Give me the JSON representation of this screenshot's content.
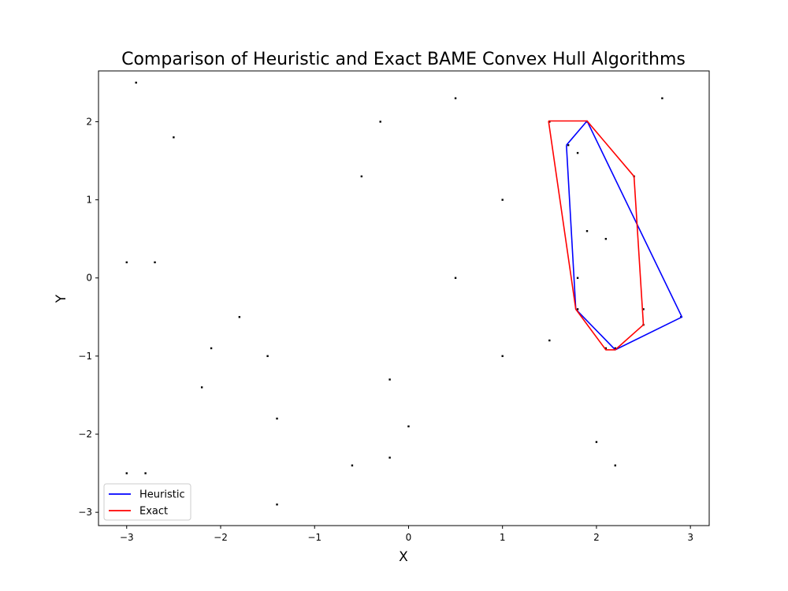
{
  "chart_data": {
    "type": "scatter",
    "title": "Comparison of Heuristic and Exact BAME Convex Hull Algorithms",
    "xlabel": "X",
    "ylabel": "Y",
    "xlim": [
      -3.3,
      3.2
    ],
    "ylim": [
      -3.17,
      2.65
    ],
    "xticks": [
      -3,
      -2,
      -1,
      0,
      1,
      2,
      3
    ],
    "yticks": [
      -3,
      -2,
      -1,
      0,
      1,
      2
    ],
    "grid": false,
    "legend_position": "lower-left",
    "points": [
      {
        "x": -2.9,
        "y": 2.5
      },
      {
        "x": -2.5,
        "y": 1.8
      },
      {
        "x": -3.0,
        "y": 0.2
      },
      {
        "x": -2.7,
        "y": 0.2
      },
      {
        "x": -1.8,
        "y": -0.5
      },
      {
        "x": -2.1,
        "y": -0.9
      },
      {
        "x": -1.5,
        "y": -1.0
      },
      {
        "x": -2.2,
        "y": -1.4
      },
      {
        "x": -1.4,
        "y": -1.8
      },
      {
        "x": -3.0,
        "y": -2.5
      },
      {
        "x": -2.8,
        "y": -2.5
      },
      {
        "x": -1.4,
        "y": -2.9
      },
      {
        "x": -0.6,
        "y": -2.4
      },
      {
        "x": -0.2,
        "y": -2.3
      },
      {
        "x": 0.0,
        "y": -1.9
      },
      {
        "x": -0.2,
        "y": -1.3
      },
      {
        "x": -0.5,
        "y": 1.3
      },
      {
        "x": -0.3,
        "y": 2.0
      },
      {
        "x": 0.5,
        "y": 2.3
      },
      {
        "x": 0.5,
        "y": 0.0
      },
      {
        "x": 1.0,
        "y": 1.0
      },
      {
        "x": 1.0,
        "y": -1.0
      },
      {
        "x": 1.5,
        "y": -0.8
      },
      {
        "x": 1.5,
        "y": 2.0
      },
      {
        "x": 1.7,
        "y": 1.7
      },
      {
        "x": 1.8,
        "y": 1.6
      },
      {
        "x": 1.9,
        "y": 2.0
      },
      {
        "x": 2.4,
        "y": 1.3
      },
      {
        "x": 2.7,
        "y": 2.3
      },
      {
        "x": 1.9,
        "y": 0.6
      },
      {
        "x": 2.1,
        "y": 0.5
      },
      {
        "x": 1.8,
        "y": 0.0
      },
      {
        "x": 1.8,
        "y": -0.4
      },
      {
        "x": 2.5,
        "y": -0.4
      },
      {
        "x": 2.9,
        "y": -0.5
      },
      {
        "x": 2.5,
        "y": -0.6
      },
      {
        "x": 2.1,
        "y": -0.9
      },
      {
        "x": 2.2,
        "y": -0.9
      },
      {
        "x": 2.0,
        "y": -2.1
      },
      {
        "x": 2.2,
        "y": -2.4
      }
    ],
    "series": [
      {
        "name": "Heuristic",
        "color": "#0000ff",
        "x": [
          1.68,
          1.9,
          2.91,
          2.2,
          1.78,
          1.68
        ],
        "y": [
          1.7,
          2.01,
          -0.5,
          -0.92,
          -0.4,
          1.7
        ]
      },
      {
        "name": "Exact",
        "color": "#ff0000",
        "x": [
          1.49,
          1.9,
          2.4,
          2.5,
          2.2,
          2.1,
          1.78,
          1.49
        ],
        "y": [
          2.01,
          2.01,
          1.3,
          -0.6,
          -0.92,
          -0.92,
          -0.4,
          2.01
        ]
      }
    ]
  }
}
